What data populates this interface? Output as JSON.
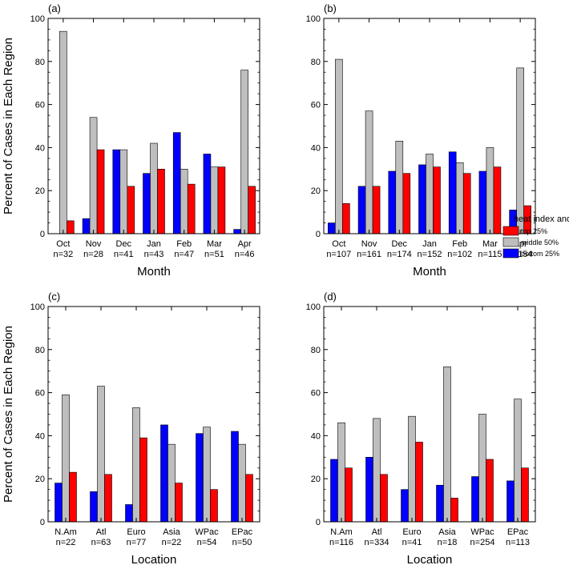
{
  "chart_data": [
    {
      "type": "bar",
      "panel_label": "(a)",
      "xlabel": "Month",
      "ylabel": "Percent of Cases in Each Region",
      "ylim": [
        0,
        100
      ],
      "yticks": [
        0,
        20,
        40,
        60,
        80,
        100
      ],
      "categories": [
        "Oct",
        "Nov",
        "Dec",
        "Jan",
        "Feb",
        "Mar",
        "Apr"
      ],
      "counts": [
        "n=32",
        "n=28",
        "n=41",
        "n=43",
        "n=47",
        "n=51",
        "n=46"
      ],
      "series": [
        {
          "key": "bottom",
          "color": "#0000ff",
          "values": [
            0,
            7,
            39,
            28,
            47,
            37,
            2
          ]
        },
        {
          "key": "middle",
          "color": "#bebebe",
          "values": [
            94,
            54,
            39,
            42,
            30,
            31,
            76
          ]
        },
        {
          "key": "top",
          "color": "#ff0000",
          "values": [
            6,
            39,
            22,
            30,
            23,
            31,
            22
          ]
        }
      ]
    },
    {
      "type": "bar",
      "panel_label": "(b)",
      "xlabel": "Month",
      "ylabel": "",
      "ylim": [
        0,
        100
      ],
      "yticks": [
        0,
        20,
        40,
        60,
        80,
        100
      ],
      "categories": [
        "Oct",
        "Nov",
        "Dec",
        "Jan",
        "Feb",
        "Mar",
        "Apr"
      ],
      "counts": [
        "n=107",
        "n=161",
        "n=174",
        "n=152",
        "n=102",
        "n=115",
        "n=154"
      ],
      "series": [
        {
          "key": "bottom",
          "color": "#0000ff",
          "values": [
            5,
            22,
            29,
            32,
            38,
            29,
            11
          ]
        },
        {
          "key": "middle",
          "color": "#bebebe",
          "values": [
            81,
            57,
            43,
            37,
            33,
            40,
            77
          ]
        },
        {
          "key": "top",
          "color": "#ff0000",
          "values": [
            14,
            22,
            28,
            31,
            28,
            31,
            13
          ]
        }
      ]
    },
    {
      "type": "bar",
      "panel_label": "(c)",
      "xlabel": "Location",
      "ylabel": "Percent of Cases in Each Region",
      "ylim": [
        0,
        100
      ],
      "yticks": [
        0,
        20,
        40,
        60,
        80,
        100
      ],
      "categories": [
        "N.Am",
        "Atl",
        "Euro",
        "Asia",
        "WPac",
        "EPac"
      ],
      "counts": [
        "n=22",
        "n=63",
        "n=77",
        "n=22",
        "n=54",
        "n=50"
      ],
      "series": [
        {
          "key": "bottom",
          "color": "#0000ff",
          "values": [
            18,
            14,
            8,
            45,
            41,
            42
          ]
        },
        {
          "key": "middle",
          "color": "#bebebe",
          "values": [
            59,
            63,
            53,
            36,
            44,
            36
          ]
        },
        {
          "key": "top",
          "color": "#ff0000",
          "values": [
            23,
            22,
            39,
            18,
            15,
            22
          ]
        }
      ]
    },
    {
      "type": "bar",
      "panel_label": "(d)",
      "xlabel": "Location",
      "ylabel": "",
      "ylim": [
        0,
        100
      ],
      "yticks": [
        0,
        20,
        40,
        60,
        80,
        100
      ],
      "categories": [
        "N.Am",
        "Atl",
        "Euro",
        "Asia",
        "WPac",
        "EPac"
      ],
      "counts": [
        "n=116",
        "n=334",
        "n=41",
        "n=18",
        "n=254",
        "n=113"
      ],
      "series": [
        {
          "key": "bottom",
          "color": "#0000ff",
          "values": [
            29,
            30,
            15,
            17,
            21,
            19
          ]
        },
        {
          "key": "middle",
          "color": "#bebebe",
          "values": [
            46,
            48,
            49,
            72,
            50,
            57
          ]
        },
        {
          "key": "top",
          "color": "#ff0000",
          "values": [
            25,
            22,
            37,
            11,
            29,
            25
          ]
        }
      ]
    }
  ],
  "legend": {
    "title": "heat index anomaly",
    "placement": "right of panel (b), bottom",
    "items": [
      {
        "label": "top 25%",
        "color": "#ff0000"
      },
      {
        "label": "middle 50%",
        "color": "#bebebe"
      },
      {
        "label": "bottom 25%",
        "color": "#0000ff"
      }
    ]
  }
}
